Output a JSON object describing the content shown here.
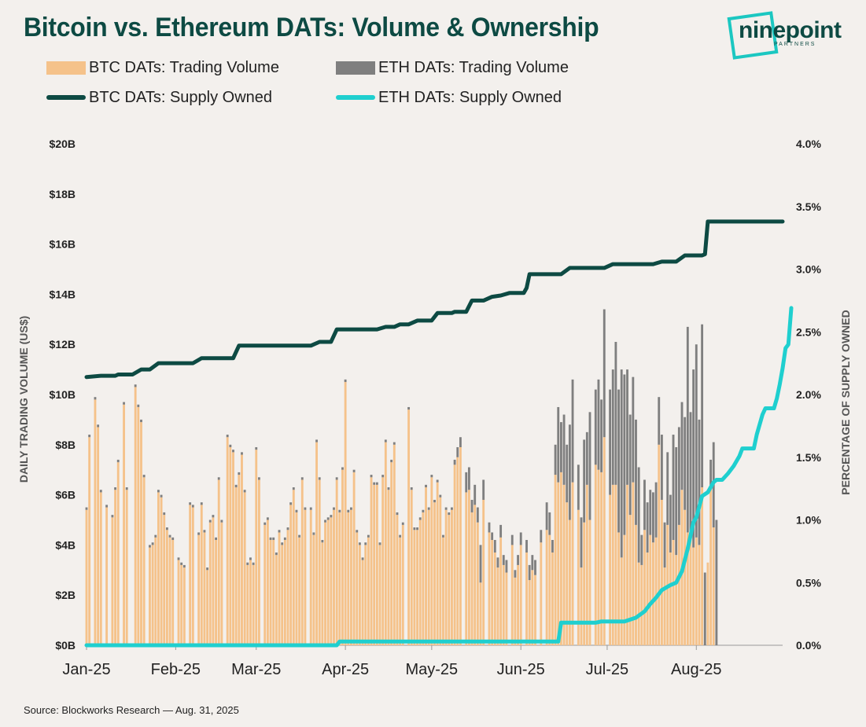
{
  "title": "Bitcoin vs. Ethereum DATs: Volume & Ownership",
  "logo": {
    "word": "ninepoint",
    "sub": "PARTNERS"
  },
  "legend": [
    {
      "label": "BTC DATs: Trading Volume",
      "color": "#f5c28a",
      "kind": "bar"
    },
    {
      "label": "ETH DATs: Trading Volume",
      "color": "#7f7f7f",
      "kind": "bar"
    },
    {
      "label": "BTC DATs: Supply Owned",
      "color": "#0d4a43",
      "kind": "line"
    },
    {
      "label": "ETH DATs: Supply Owned",
      "color": "#1fcfcf",
      "kind": "line"
    }
  ],
  "source": "Source: Blockworks Research — Aug. 31, 2025",
  "chart_data": {
    "type": "bar",
    "left_axis": {
      "label": "DAILY TRADING VOLUME (US$)",
      "ticks": [
        "$0B",
        "$2B",
        "$4B",
        "$6B",
        "$8B",
        "$10B",
        "$12B",
        "$14B",
        "$16B",
        "$18B",
        "$20B"
      ],
      "ylim": [
        0,
        20
      ]
    },
    "right_axis": {
      "label": "PERCENTAGE OF SUPPLY OWNED",
      "ticks": [
        "0.0%",
        "0.5%",
        "1.0%",
        "1.5%",
        "2.0%",
        "2.5%",
        "3.0%",
        "3.5%",
        "4.0%"
      ],
      "ylim": [
        0,
        4
      ]
    },
    "x_ticks": [
      "Jan-25",
      "Feb-25",
      "Mar-25",
      "Apr-25",
      "May-25",
      "Jun-25",
      "Jul-25",
      "Aug-25"
    ],
    "x_domain_days": [
      0,
      242
    ],
    "x_tick_days": [
      0,
      31,
      59,
      90,
      120,
      151,
      181,
      212
    ],
    "series": [
      {
        "name": "BTC DATs: Trading Volume",
        "color": "#f5c28a",
        "values": [
          5.4,
          8.3,
          0.0,
          9.8,
          8.7,
          6.1,
          0.0,
          5.5,
          0.0,
          5.1,
          6.2,
          7.3,
          0.0,
          9.6,
          6.2,
          0.0,
          0.0,
          10.3,
          9.5,
          8.9,
          6.7,
          0.0,
          3.9,
          4.0,
          4.3,
          6.1,
          5.9,
          5.2,
          4.6,
          4.3,
          4.2,
          0.0,
          3.4,
          3.2,
          3.1,
          0.0,
          5.6,
          5.5,
          0.0,
          4.4,
          5.6,
          4.5,
          3.0,
          4.9,
          5.1,
          4.2,
          6.6,
          4.9,
          0.0,
          8.3,
          7.9,
          7.7,
          6.3,
          6.8,
          7.6,
          6.1,
          3.2,
          3.4,
          3.2,
          7.8,
          6.6,
          0.0,
          4.8,
          5.0,
          4.2,
          4.2,
          3.6,
          4.5,
          4.0,
          4.2,
          4.6,
          5.6,
          6.2,
          5.3,
          4.3,
          6.6,
          5.4,
          0.0,
          5.4,
          4.4,
          8.1,
          6.6,
          4.1,
          4.9,
          5.0,
          5.1,
          5.4,
          6.6,
          5.3,
          7.0,
          10.5,
          5.3,
          5.4,
          6.9,
          4.5,
          4.0,
          3.4,
          4.0,
          4.3,
          6.7,
          6.4,
          6.4,
          4.0,
          6.7,
          8.1,
          6.2,
          7.3,
          8.0,
          5.2,
          4.3,
          4.8,
          0.0,
          9.4,
          6.2,
          4.6,
          4.6,
          5.0,
          5.3,
          6.3,
          5.4,
          6.7,
          5.7,
          6.5,
          5.9,
          4.3,
          5.4,
          5.2,
          5.4,
          7.2,
          7.5,
          7.9,
          0.0,
          6.1,
          6.2,
          5.3,
          5.6,
          4.9,
          2.5,
          5.8,
          0.0,
          4.5,
          4.2,
          3.7,
          3.1,
          4.3,
          3.2,
          2.9,
          0.0,
          4.0,
          2.7,
          3.2,
          4.0,
          0.0,
          3.7,
          2.6,
          3.0,
          2.8,
          0.0,
          4.1,
          0.0,
          4.6,
          4.4,
          3.7,
          6.8,
          6.5,
          6.9,
          6.4,
          5.7,
          5.0,
          6.5,
          0.0,
          5.4,
          3.1,
          4.9,
          6.4,
          5.0,
          0.0,
          7.2,
          7.0,
          6.9,
          8.3,
          0.0,
          6.0,
          6.4,
          6.4,
          4.5,
          3.5,
          4.4,
          6.4,
          5.2,
          6.5,
          4.8,
          3.3,
          3.2,
          4.6,
          3.7,
          4.4,
          4.1,
          4.3,
          8.0,
          5.8,
          3.1,
          4.8,
          3.7,
          4.2,
          3.6,
          4.8,
          6.2,
          5.4,
          4.5,
          4.3,
          3.9,
          4.3,
          4.0,
          6.3,
          0.0,
          3.3,
          6.3,
          4.7,
          0.0,
          0.0,
          0.0,
          0.0,
          0.0,
          0.0,
          0.0,
          0.0,
          0.0,
          0.0,
          0.0,
          0.0,
          0.0,
          0.0,
          0.0,
          0.0,
          0.0,
          0.0,
          0.0,
          0.0,
          0.0,
          0.0
        ]
      },
      {
        "name": "ETH DATs: Trading Volume",
        "color": "#7f7f7f",
        "values": [
          0.1,
          0.1,
          0.0,
          0.1,
          0.1,
          0.1,
          0.0,
          0.1,
          0.0,
          0.1,
          0.1,
          0.1,
          0.0,
          0.1,
          0.1,
          0.0,
          0.0,
          0.1,
          0.1,
          0.1,
          0.1,
          0.0,
          0.1,
          0.1,
          0.1,
          0.1,
          0.1,
          0.1,
          0.1,
          0.1,
          0.1,
          0.0,
          0.1,
          0.1,
          0.1,
          0.0,
          0.1,
          0.1,
          0.0,
          0.1,
          0.1,
          0.1,
          0.1,
          0.1,
          0.1,
          0.1,
          0.1,
          0.1,
          0.0,
          0.1,
          0.1,
          0.1,
          0.1,
          0.1,
          0.1,
          0.1,
          0.1,
          0.1,
          0.1,
          0.1,
          0.1,
          0.0,
          0.1,
          0.1,
          0.1,
          0.1,
          0.1,
          0.1,
          0.1,
          0.1,
          0.1,
          0.1,
          0.1,
          0.1,
          0.1,
          0.1,
          0.1,
          0.0,
          0.1,
          0.1,
          0.1,
          0.1,
          0.1,
          0.1,
          0.1,
          0.1,
          0.1,
          0.1,
          0.1,
          0.1,
          0.1,
          0.1,
          0.1,
          0.1,
          0.1,
          0.1,
          0.1,
          0.1,
          0.1,
          0.1,
          0.1,
          0.1,
          0.1,
          0.1,
          0.1,
          0.1,
          0.1,
          0.1,
          0.1,
          0.1,
          0.1,
          0.0,
          0.1,
          0.1,
          0.1,
          0.1,
          0.1,
          0.1,
          0.1,
          0.1,
          0.1,
          0.1,
          0.1,
          0.1,
          0.1,
          0.1,
          0.1,
          0.1,
          0.2,
          0.4,
          0.4,
          0.0,
          0.8,
          0.9,
          0.5,
          0.8,
          0.6,
          1.5,
          0.8,
          0.0,
          0.4,
          0.3,
          0.5,
          0.4,
          0.5,
          0.4,
          0.5,
          0.0,
          0.4,
          0.3,
          0.4,
          0.5,
          0.0,
          0.5,
          0.6,
          0.6,
          0.6,
          0.0,
          0.5,
          0.0,
          1.1,
          0.9,
          0.5,
          1.2,
          3.0,
          2.0,
          2.8,
          2.3,
          3.8,
          4.1,
          0.0,
          1.8,
          2.0,
          3.3,
          2.1,
          4.3,
          0.0,
          3.0,
          3.6,
          2.9,
          5.1,
          0.0,
          4.2,
          4.6,
          5.7,
          5.7,
          7.5,
          6.4,
          4.6,
          4.0,
          4.2,
          4.2,
          3.8,
          1.2,
          2.0,
          2.0,
          1.8,
          2.0,
          2.2,
          1.9,
          2.6,
          1.8,
          2.9,
          2.3,
          4.2,
          4.3,
          3.9,
          3.5,
          3.7,
          8.2,
          5.0,
          7.1,
          7.7,
          5.0,
          6.5,
          2.9,
          0.0,
          1.1,
          3.4,
          5.0,
          0.0,
          0.0,
          0.0,
          0.0,
          0.0,
          0.0,
          0.0,
          0.0,
          0.0,
          0.0,
          0.0,
          0.0,
          0.0,
          0.0,
          0.0,
          0.0,
          0.0,
          0.0,
          0.0,
          0.0,
          0.0,
          0.0
        ]
      },
      {
        "name": "BTC DATs: Supply Owned",
        "color": "#0d4a43",
        "points": [
          [
            0,
            2.14
          ],
          [
            5,
            2.15
          ],
          [
            10,
            2.15
          ],
          [
            11,
            2.16
          ],
          [
            16,
            2.16
          ],
          [
            19,
            2.2
          ],
          [
            22,
            2.2
          ],
          [
            25,
            2.25
          ],
          [
            37,
            2.25
          ],
          [
            40,
            2.29
          ],
          [
            51,
            2.29
          ],
          [
            53,
            2.39
          ],
          [
            78,
            2.39
          ],
          [
            81,
            2.42
          ],
          [
            85,
            2.42
          ],
          [
            87,
            2.52
          ],
          [
            101,
            2.52
          ],
          [
            104,
            2.54
          ],
          [
            107,
            2.54
          ],
          [
            109,
            2.56
          ],
          [
            112,
            2.56
          ],
          [
            115,
            2.59
          ],
          [
            120,
            2.59
          ],
          [
            122,
            2.65
          ],
          [
            127,
            2.65
          ],
          [
            128,
            2.66
          ],
          [
            132,
            2.66
          ],
          [
            134,
            2.75
          ],
          [
            138,
            2.75
          ],
          [
            141,
            2.78
          ],
          [
            144,
            2.79
          ],
          [
            147,
            2.81
          ],
          [
            152,
            2.81
          ],
          [
            153,
            2.85
          ],
          [
            154,
            2.96
          ],
          [
            165,
            2.96
          ],
          [
            168,
            3.01
          ],
          [
            180,
            3.01
          ],
          [
            183,
            3.04
          ],
          [
            197,
            3.04
          ],
          [
            200,
            3.06
          ],
          [
            205,
            3.06
          ],
          [
            208,
            3.11
          ],
          [
            214,
            3.11
          ],
          [
            215,
            3.12
          ],
          [
            216,
            3.38
          ],
          [
            242,
            3.38
          ]
        ]
      },
      {
        "name": "ETH DATs: Supply Owned",
        "color": "#1fcfcf",
        "points": [
          [
            0,
            0.0
          ],
          [
            87,
            0.0
          ],
          [
            88,
            0.03
          ],
          [
            162,
            0.03
          ],
          [
            164,
            0.03
          ],
          [
            165,
            0.18
          ],
          [
            177,
            0.18
          ],
          [
            179,
            0.19
          ],
          [
            187,
            0.19
          ],
          [
            191,
            0.22
          ],
          [
            194,
            0.27
          ],
          [
            196,
            0.33
          ],
          [
            198,
            0.38
          ],
          [
            200,
            0.44
          ],
          [
            203,
            0.48
          ],
          [
            205,
            0.5
          ],
          [
            207,
            0.59
          ],
          [
            209,
            0.77
          ],
          [
            211,
            0.98
          ],
          [
            212,
            1.02
          ],
          [
            214,
            1.19
          ],
          [
            216,
            1.22
          ],
          [
            218,
            1.3
          ],
          [
            219,
            1.32
          ],
          [
            221,
            1.32
          ],
          [
            223,
            1.37
          ],
          [
            225,
            1.43
          ],
          [
            227,
            1.51
          ],
          [
            228,
            1.57
          ],
          [
            232,
            1.57
          ],
          [
            233,
            1.68
          ],
          [
            235,
            1.84
          ],
          [
            236,
            1.89
          ],
          [
            239,
            1.89
          ],
          [
            240,
            1.97
          ],
          [
            241,
            2.08
          ],
          [
            242,
            2.21
          ],
          [
            243,
            2.37
          ],
          [
            244,
            2.4
          ],
          [
            245,
            2.69
          ]
        ]
      }
    ]
  }
}
